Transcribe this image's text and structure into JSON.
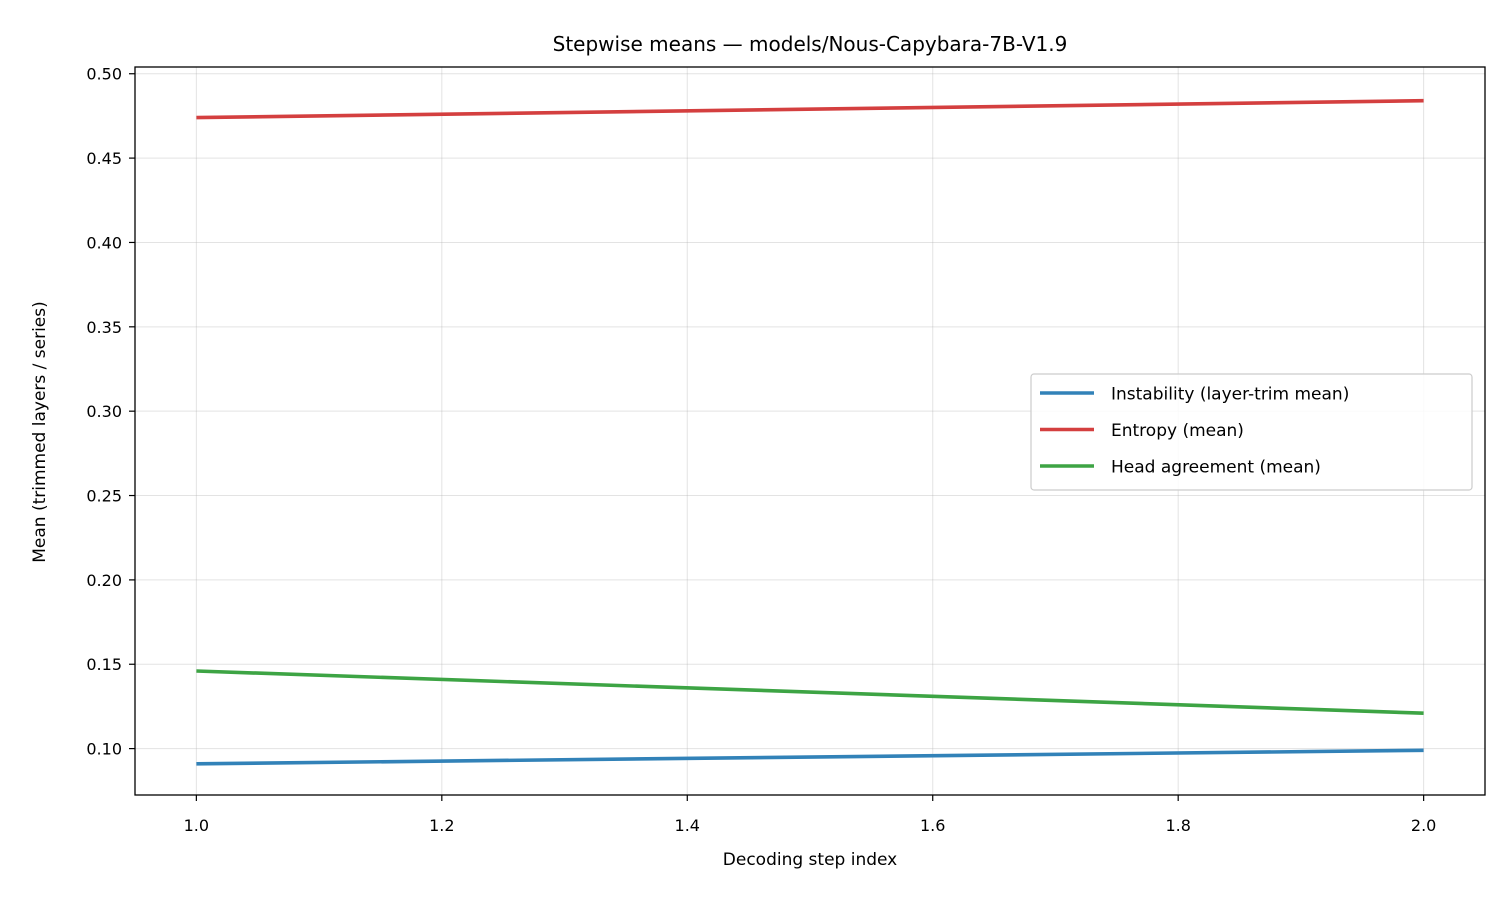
{
  "chart_data": {
    "type": "line",
    "title": "Stepwise means — models/Nous-Capybara-7B-V1.9",
    "xlabel": "Decoding step index",
    "ylabel": "Mean (trimmed layers / series)",
    "xlim": [
      0.95,
      2.05
    ],
    "ylim": [
      0.0725,
      0.504
    ],
    "xticks": [
      1.0,
      1.2,
      1.4,
      1.6,
      1.8,
      2.0
    ],
    "yticks": [
      0.1,
      0.15,
      0.2,
      0.25,
      0.3,
      0.35,
      0.4,
      0.45,
      0.5
    ],
    "grid": true,
    "legend_position": "center-right",
    "series": [
      {
        "name": "Instability (layer-trim mean)",
        "color": "#3282b8",
        "x": [
          1.0,
          2.0
        ],
        "y": [
          0.091,
          0.099
        ]
      },
      {
        "name": "Entropy (mean)",
        "color": "#d43f3f",
        "x": [
          1.0,
          2.0
        ],
        "y": [
          0.474,
          0.484
        ]
      },
      {
        "name": "Head agreement (mean)",
        "color": "#3da444",
        "x": [
          1.0,
          2.0
        ],
        "y": [
          0.146,
          0.121
        ]
      }
    ]
  }
}
